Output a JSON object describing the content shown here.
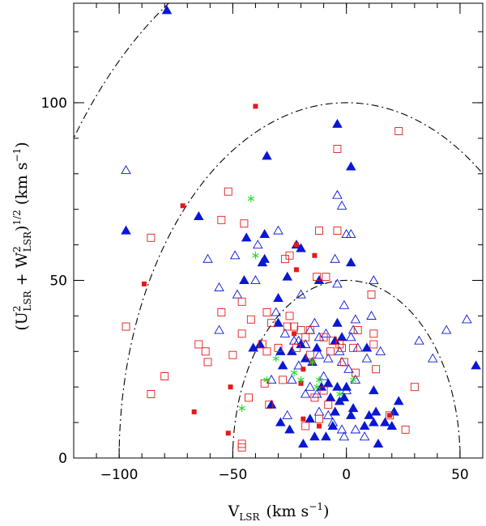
{
  "chart_data": {
    "type": "scatter",
    "xlabel": {
      "main": "V",
      "sub": "LSR",
      "unit": "(km s",
      "exp": "−1",
      "close": ")"
    },
    "ylabel": {
      "open": "(U",
      "sq1": "2",
      "sub1": "LSR",
      "plus": " + W",
      "sq2": "2",
      "sub2": "LSR",
      "close": ")",
      "half": "1/2",
      "unit": " (km s",
      "exp": "−1",
      "close2": ")"
    },
    "xlim": [
      -120,
      60
    ],
    "ylim": [
      0,
      128
    ],
    "x_ticks": [
      -100,
      -50,
      0,
      50
    ],
    "x_tick_labels": [
      "−100",
      "−50",
      "0",
      "50"
    ],
    "y_ticks": [
      0,
      50,
      100
    ],
    "y_tick_labels": [
      "0",
      "50",
      "100"
    ],
    "x_minor_step": 10,
    "y_minor_step": 10,
    "curves": [
      {
        "name": "velocity-circle-50",
        "center": [
          0,
          0
        ],
        "radius": 50,
        "style": "dash-dot"
      },
      {
        "name": "velocity-circle-100",
        "center": [
          0,
          0
        ],
        "radius": 100,
        "style": "dash-dot"
      },
      {
        "name": "velocity-circle-150",
        "center": [
          0,
          0
        ],
        "radius": 150,
        "style": "dash-dot"
      }
    ],
    "series": [
      {
        "name": "filled-triangles",
        "marker": "triangle-filled",
        "color": "#0a17d4",
        "points": [
          [
            -79,
            126
          ],
          [
            -97,
            64
          ],
          [
            -65,
            68
          ],
          [
            -35,
            85
          ],
          [
            -4,
            94
          ],
          [
            2,
            82
          ],
          [
            -44,
            62
          ],
          [
            -36,
            63
          ],
          [
            -37,
            55
          ],
          [
            -22,
            60
          ],
          [
            -20,
            59
          ],
          [
            -26,
            51
          ],
          [
            -36,
            56
          ],
          [
            -45,
            50
          ],
          [
            -12,
            50
          ],
          [
            -30,
            45
          ],
          [
            -4,
            38
          ],
          [
            -30,
            38
          ],
          [
            -38,
            32
          ],
          [
            -41,
            31
          ],
          [
            -24,
            30
          ],
          [
            -18,
            28
          ],
          [
            -28,
            26
          ],
          [
            -15,
            27
          ],
          [
            -13,
            31
          ],
          [
            -5,
            33
          ],
          [
            -8,
            21
          ],
          [
            -11,
            20
          ],
          [
            -4,
            20
          ],
          [
            -7,
            17
          ],
          [
            3,
            14
          ],
          [
            -5,
            13
          ],
          [
            2,
            12
          ],
          [
            -6,
            9
          ],
          [
            10,
            12
          ],
          [
            8,
            9
          ],
          [
            12,
            10
          ],
          [
            -16,
            11
          ],
          [
            -25,
            8
          ],
          [
            -29,
            10
          ],
          [
            -14,
            6
          ],
          [
            -9,
            6
          ],
          [
            -19,
            4
          ],
          [
            0,
            20
          ],
          [
            -3,
            16
          ],
          [
            13,
            13
          ],
          [
            17,
            10
          ],
          [
            20,
            9
          ],
          [
            21,
            13
          ],
          [
            14,
            4
          ],
          [
            23,
            16
          ],
          [
            57,
            26
          ],
          [
            12,
            19
          ],
          [
            2,
            55
          ],
          [
            -1,
            17
          ],
          [
            -33,
            15
          ],
          [
            -29,
            30
          ],
          [
            -20,
            32
          ],
          [
            9,
            31
          ],
          [
            -2,
            34
          ]
        ]
      },
      {
        "name": "open-triangles",
        "marker": "triangle-open",
        "color": "#0a17d4",
        "points": [
          [
            -97,
            81
          ],
          [
            -4,
            74
          ],
          [
            -2,
            71
          ],
          [
            0,
            63
          ],
          [
            -39,
            60
          ],
          [
            -30,
            64
          ],
          [
            -61,
            56
          ],
          [
            -49,
            57
          ],
          [
            -56,
            48
          ],
          [
            -48,
            46
          ],
          [
            -40,
            50
          ],
          [
            -56,
            36
          ],
          [
            -20,
            46
          ],
          [
            -31,
            41
          ],
          [
            -4,
            49
          ],
          [
            -1,
            43
          ],
          [
            12,
            50
          ],
          [
            11,
            40
          ],
          [
            4,
            39
          ],
          [
            3,
            36
          ],
          [
            -16,
            36
          ],
          [
            -9,
            35
          ],
          [
            2,
            34
          ],
          [
            -23,
            33
          ],
          [
            -21,
            33
          ],
          [
            -18,
            32
          ],
          [
            -12,
            34
          ],
          [
            -12,
            29
          ],
          [
            -8,
            28
          ],
          [
            -3,
            30
          ],
          [
            5,
            31
          ],
          [
            -10,
            23
          ],
          [
            -2,
            27
          ],
          [
            1,
            25
          ],
          [
            -16,
            20
          ],
          [
            -13,
            18
          ],
          [
            0,
            19
          ],
          [
            -8,
            12
          ],
          [
            -6,
            10
          ],
          [
            -2,
            8
          ],
          [
            4,
            8
          ],
          [
            8,
            6
          ],
          [
            -12,
            13
          ],
          [
            -18,
            18
          ],
          [
            -24,
            22
          ],
          [
            -33,
            22
          ],
          [
            44,
            36
          ],
          [
            53,
            39
          ],
          [
            38,
            28
          ],
          [
            32,
            33
          ],
          [
            -27,
            35
          ],
          [
            2,
            63
          ],
          [
            -5,
            56
          ],
          [
            -14,
            38
          ],
          [
            -21,
            26
          ],
          [
            9,
            28
          ],
          [
            15,
            30
          ],
          [
            4,
            22
          ],
          [
            -1,
            6
          ],
          [
            -26,
            12
          ]
        ]
      },
      {
        "name": "open-squares",
        "marker": "square-open",
        "color": "#e11b1b",
        "points": [
          [
            -4,
            87
          ],
          [
            23,
            92
          ],
          [
            -52,
            75
          ],
          [
            -45,
            66
          ],
          [
            -55,
            67
          ],
          [
            -86,
            62
          ],
          [
            -12,
            64
          ],
          [
            -4,
            64
          ],
          [
            -27,
            56
          ],
          [
            -25,
            57
          ],
          [
            -13,
            51
          ],
          [
            -9,
            51
          ],
          [
            11,
            46
          ],
          [
            -46,
            44
          ],
          [
            -55,
            41
          ],
          [
            -35,
            41
          ],
          [
            -25,
            40
          ],
          [
            -42,
            39
          ],
          [
            -97,
            37
          ],
          [
            -16,
            36
          ],
          [
            -26,
            37
          ],
          [
            -23,
            37
          ],
          [
            -20,
            36
          ],
          [
            -18,
            34
          ],
          [
            -10,
            34
          ],
          [
            -6,
            33
          ],
          [
            -3,
            32
          ],
          [
            5,
            36
          ],
          [
            12,
            35
          ],
          [
            -65,
            32
          ],
          [
            -62,
            30
          ],
          [
            -61,
            27
          ],
          [
            -50,
            29
          ],
          [
            -46,
            35
          ],
          [
            -33,
            38
          ],
          [
            -37,
            32
          ],
          [
            -35,
            30
          ],
          [
            -30,
            31
          ],
          [
            -22,
            31
          ],
          [
            -16,
            29
          ],
          [
            -7,
            30
          ],
          [
            -2,
            31
          ],
          [
            3,
            31
          ],
          [
            12,
            32
          ],
          [
            -80,
            23
          ],
          [
            -86,
            18
          ],
          [
            -36,
            21
          ],
          [
            -28,
            22
          ],
          [
            -14,
            17
          ],
          [
            -8,
            15
          ],
          [
            -12,
            11
          ],
          [
            4,
            24
          ],
          [
            13,
            25
          ],
          [
            -34,
            15
          ],
          [
            -43,
            17
          ],
          [
            -46,
            4
          ],
          [
            -46,
            3
          ],
          [
            -18,
            9
          ],
          [
            19,
            12
          ],
          [
            26,
            8
          ],
          [
            30,
            20
          ],
          [
            -10,
            19
          ],
          [
            -1,
            27
          ]
        ]
      },
      {
        "name": "filled-squares",
        "marker": "square-filled",
        "color": "#e11b1b",
        "points": [
          [
            -40,
            99
          ],
          [
            -72,
            71
          ],
          [
            -89,
            49
          ],
          [
            -14,
            57
          ],
          [
            -22,
            53
          ],
          [
            -22,
            60
          ],
          [
            -23,
            35
          ],
          [
            -19,
            25
          ],
          [
            -15,
            27
          ],
          [
            -20,
            21
          ],
          [
            -51,
            20
          ],
          [
            -19,
            11
          ],
          [
            -12,
            9
          ],
          [
            19,
            12
          ],
          [
            -67,
            13
          ],
          [
            -52,
            7
          ]
        ]
      },
      {
        "name": "green-stars",
        "marker": "star",
        "color": "#22dd22",
        "points": [
          [
            -42,
            73
          ],
          [
            -40,
            57
          ],
          [
            -31,
            28
          ],
          [
            -35,
            22
          ],
          [
            -23,
            24
          ],
          [
            -20,
            22
          ],
          [
            -15,
            27
          ],
          [
            -12,
            22
          ],
          [
            -13,
            20
          ],
          [
            -46,
            14
          ],
          [
            -3,
            18
          ],
          [
            3,
            22
          ]
        ]
      }
    ]
  }
}
